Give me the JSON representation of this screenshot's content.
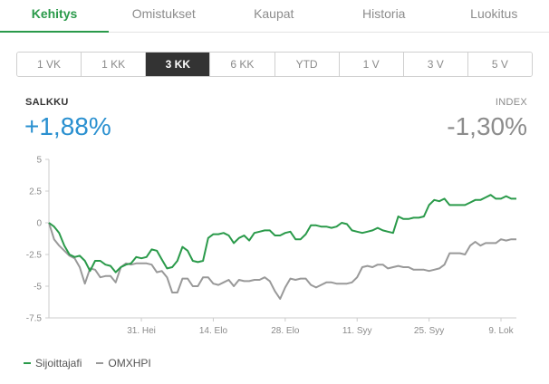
{
  "tabs": [
    "Kehitys",
    "Omistukset",
    "Kaupat",
    "Historia",
    "Luokitus"
  ],
  "active_tab": 0,
  "ranges": [
    "1 VK",
    "1 KK",
    "3 KK",
    "6 KK",
    "YTD",
    "1 V",
    "3 V",
    "5 V"
  ],
  "active_range": 2,
  "portfolio": {
    "label": "SALKKU",
    "value": "+1,88%"
  },
  "index": {
    "label": "INDEX",
    "value": "-1,30%"
  },
  "colors": {
    "green": "#2a9a4a",
    "gray": "#999999",
    "blue": "#2a90d0"
  },
  "chart_data": {
    "type": "line",
    "ylim": [
      -7.5,
      5
    ],
    "yticks": [
      5,
      2.5,
      0,
      -2.5,
      -5,
      -7.5
    ],
    "ytick_labels": [
      "5",
      "2.5",
      "0",
      "-2.5",
      "-5",
      "-7.5"
    ],
    "xlim": [
      0,
      91
    ],
    "xticks": [
      {
        "x": 18,
        "label": "31. Hei"
      },
      {
        "x": 32,
        "label": "14. Elo"
      },
      {
        "x": 46,
        "label": "28. Elo"
      },
      {
        "x": 60,
        "label": "11. Syy"
      },
      {
        "x": 74,
        "label": "25. Syy"
      },
      {
        "x": 88,
        "label": "9. Lok"
      }
    ],
    "series": [
      {
        "name": "Sijoittajafi",
        "color": "#2a9a4a",
        "x": [
          0,
          1,
          2,
          3,
          4,
          5,
          6,
          7,
          8,
          9,
          10,
          11,
          12,
          13,
          14,
          15,
          16,
          17,
          18,
          19,
          20,
          21,
          22,
          23,
          24,
          25,
          26,
          27,
          28,
          29,
          30,
          31,
          32,
          33,
          34,
          35,
          36,
          37,
          38,
          39,
          40,
          41,
          42,
          43,
          44,
          45,
          46,
          47,
          48,
          49,
          50,
          51,
          52,
          53,
          54,
          55,
          56,
          57,
          58,
          59,
          60,
          61,
          62,
          63,
          64,
          65,
          66,
          67,
          68,
          69,
          70,
          71,
          72,
          73,
          74,
          75,
          76,
          77,
          78,
          79,
          80,
          81,
          82,
          83,
          84,
          85,
          86,
          87,
          88,
          89,
          90,
          91
        ],
        "y": [
          0,
          -0.3,
          -0.8,
          -1.8,
          -2.5,
          -2.7,
          -2.6,
          -3,
          -3.8,
          -3,
          -3,
          -3.3,
          -3.4,
          -3.9,
          -3.5,
          -3.3,
          -3.2,
          -2.7,
          -2.8,
          -2.7,
          -2.1,
          -2.2,
          -2.9,
          -3.6,
          -3.5,
          -3.0,
          -1.9,
          -2.2,
          -3.0,
          -3.1,
          -3.0,
          -1.2,
          -0.9,
          -0.9,
          -0.8,
          -1.0,
          -1.6,
          -1.2,
          -1.0,
          -1.4,
          -0.8,
          -0.7,
          -0.6,
          -0.6,
          -1.0,
          -1.0,
          -0.8,
          -0.7,
          -1.3,
          -1.3,
          -0.9,
          -0.2,
          -0.2,
          -0.3,
          -0.3,
          -0.4,
          -0.3,
          0,
          -0.1,
          -0.6,
          -0.7,
          -0.8,
          -0.7,
          -0.6,
          -0.4,
          -0.6,
          -0.7,
          -0.8,
          0.5,
          0.3,
          0.3,
          0.4,
          0.4,
          0.5,
          1.4,
          1.8,
          1.7,
          1.9,
          1.4,
          1.4,
          1.4,
          1.4,
          1.6,
          1.8,
          1.8,
          2.0,
          2.2,
          1.9,
          1.9,
          2.1,
          1.9,
          1.9
        ]
      },
      {
        "name": "OMXHPI",
        "color": "#999999",
        "x": [
          0,
          1,
          2,
          3,
          4,
          5,
          6,
          7,
          8,
          9,
          10,
          11,
          12,
          13,
          14,
          15,
          16,
          17,
          18,
          19,
          20,
          21,
          22,
          23,
          24,
          25,
          26,
          27,
          28,
          29,
          30,
          31,
          32,
          33,
          34,
          35,
          36,
          37,
          38,
          39,
          40,
          41,
          42,
          43,
          44,
          45,
          46,
          47,
          48,
          49,
          50,
          51,
          52,
          53,
          54,
          55,
          56,
          57,
          58,
          59,
          60,
          61,
          62,
          63,
          64,
          65,
          66,
          67,
          68,
          69,
          70,
          71,
          72,
          73,
          74,
          75,
          76,
          77,
          78,
          79,
          80,
          81,
          82,
          83,
          84,
          85,
          86,
          87,
          88,
          89,
          90,
          91
        ],
        "y": [
          0,
          -1.3,
          -1.8,
          -2.2,
          -2.6,
          -2.8,
          -3.5,
          -4.8,
          -3.6,
          -3.7,
          -4.3,
          -4.2,
          -4.2,
          -4.7,
          -3.5,
          -3.2,
          -3.3,
          -3.2,
          -3.2,
          -3.2,
          -3.3,
          -3.9,
          -3.8,
          -4.3,
          -5.5,
          -5.5,
          -4.4,
          -4.4,
          -5,
          -5,
          -4.3,
          -4.3,
          -4.8,
          -4.9,
          -4.7,
          -4.5,
          -5.0,
          -4.5,
          -4.6,
          -4.6,
          -4.5,
          -4.5,
          -4.3,
          -4.6,
          -5.4,
          -6.0,
          -5.1,
          -4.4,
          -4.5,
          -4.4,
          -4.4,
          -4.9,
          -5.1,
          -4.9,
          -4.7,
          -4.7,
          -4.8,
          -4.8,
          -4.8,
          -4.7,
          -4.3,
          -3.5,
          -3.4,
          -3.5,
          -3.3,
          -3.3,
          -3.6,
          -3.5,
          -3.4,
          -3.5,
          -3.5,
          -3.7,
          -3.7,
          -3.7,
          -3.8,
          -3.7,
          -3.6,
          -3.3,
          -2.4,
          -2.4,
          -2.4,
          -2.5,
          -1.8,
          -1.5,
          -1.8,
          -1.6,
          -1.6,
          -1.6,
          -1.3,
          -1.4,
          -1.3,
          -1.3
        ]
      }
    ]
  }
}
